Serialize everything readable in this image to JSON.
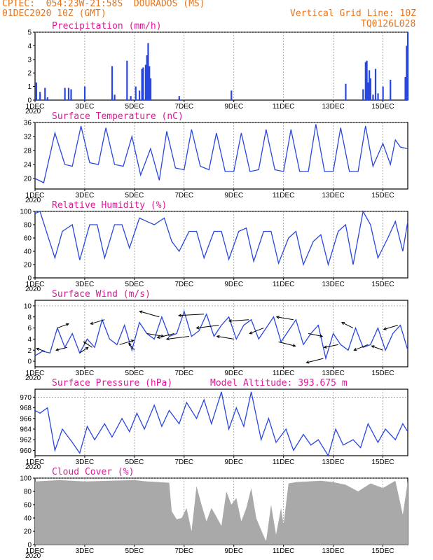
{
  "header": {
    "line1": "CPTEC:  054:23W-21:58S  DOURADOS (MS)",
    "line2": "01DEC2020 10Z (GMT)",
    "grid_note": "Vertical Grid Line: 10Z",
    "code": "TQ0126L028"
  },
  "colors": {
    "header": "#e8731c",
    "title": "#e0189a",
    "line": "#2846e0",
    "bar": "#2846e0",
    "cloud": "#a9a9a9"
  },
  "x_ticks": [
    "1DEC",
    "3DEC",
    "5DEC",
    "7DEC",
    "9DEC",
    "11DEC",
    "13DEC",
    "15DEC"
  ],
  "x_label_fragment": "2020",
  "model_altitude": "Model Altitude: 393.675 m",
  "chart_data": [
    {
      "id": "precip",
      "type": "bar",
      "title": "Precipitation (mm/h)",
      "x_range_days": [
        1,
        16
      ],
      "ylim": [
        0,
        5
      ],
      "yticks": [
        0,
        1,
        2,
        3,
        4,
        5
      ],
      "x": [
        1.05,
        1.2,
        1.4,
        1.5,
        2.2,
        2.35,
        2.45,
        3.0,
        4.1,
        4.2,
        4.7,
        4.85,
        5.05,
        5.2,
        5.3,
        5.35,
        5.45,
        5.5,
        5.55,
        5.6,
        5.65,
        6.8,
        8.9,
        13.5,
        14.2,
        14.3,
        14.35,
        14.4,
        14.45,
        14.5,
        14.6,
        14.7,
        14.8,
        15.0,
        15.3,
        15.9,
        15.95,
        16.0
      ],
      "values": [
        1.3,
        0.6,
        0.9,
        0.2,
        0.9,
        0.9,
        0.8,
        1.0,
        2.5,
        0.4,
        2.9,
        0.3,
        1.0,
        0.7,
        2.3,
        2.4,
        2.6,
        3.3,
        4.2,
        2.5,
        1.6,
        0.3,
        0.7,
        1.2,
        0.8,
        2.8,
        2.9,
        1.3,
        2.2,
        1.6,
        0.4,
        2.3,
        0.5,
        1.0,
        1.5,
        1.7,
        4.0,
        5.0
      ]
    },
    {
      "id": "temp",
      "type": "line",
      "title": "Surface Temperature (nC)",
      "ylim": [
        17,
        36
      ],
      "yticks": [
        20,
        24,
        28,
        32,
        36
      ],
      "x": [
        1.0,
        1.35,
        1.8,
        2.2,
        2.5,
        2.85,
        3.2,
        3.55,
        3.85,
        4.2,
        4.55,
        4.9,
        5.25,
        5.65,
        6.0,
        6.3,
        6.65,
        7.0,
        7.3,
        7.65,
        8.0,
        8.3,
        8.65,
        9.0,
        9.3,
        9.65,
        10.0,
        10.3,
        10.65,
        11.0,
        11.3,
        11.65,
        12.0,
        12.3,
        12.65,
        13.0,
        13.3,
        13.65,
        14.0,
        14.3,
        14.6,
        15.0,
        15.3,
        15.5,
        15.7,
        16.0
      ],
      "values": [
        20,
        18.8,
        33,
        24,
        23.5,
        35,
        24.5,
        24,
        34.5,
        24,
        23.5,
        32,
        21,
        28.5,
        19.5,
        33.5,
        23,
        22.5,
        34,
        23.5,
        22.5,
        33,
        22,
        22,
        33,
        22,
        22.5,
        34,
        22.5,
        22,
        34,
        22,
        22,
        35.5,
        22,
        22,
        34.5,
        22,
        22,
        35,
        23.5,
        30,
        24,
        31,
        29,
        28.5
      ]
    },
    {
      "id": "rh",
      "type": "line",
      "title": "Relative Humidity (%)",
      "ylim": [
        0,
        100
      ],
      "yticks": [
        0,
        20,
        40,
        60,
        80,
        100
      ],
      "x": [
        1.0,
        1.2,
        1.5,
        1.8,
        2.1,
        2.5,
        2.8,
        3.2,
        3.5,
        3.8,
        4.2,
        4.5,
        4.8,
        5.2,
        5.5,
        5.8,
        6.2,
        6.5,
        6.8,
        7.2,
        7.5,
        7.8,
        8.2,
        8.5,
        8.8,
        9.2,
        9.5,
        9.8,
        10.2,
        10.5,
        10.8,
        11.2,
        11.5,
        11.8,
        12.2,
        12.5,
        12.8,
        13.2,
        13.5,
        13.8,
        14.2,
        14.5,
        14.8,
        15.2,
        15.5,
        15.8,
        16.0
      ],
      "values": [
        97,
        100,
        65,
        30,
        70,
        80,
        27,
        80,
        80,
        30,
        80,
        80,
        45,
        90,
        85,
        80,
        90,
        55,
        40,
        70,
        70,
        30,
        70,
        70,
        28,
        70,
        75,
        25,
        70,
        70,
        22,
        60,
        70,
        20,
        55,
        65,
        20,
        70,
        80,
        20,
        100,
        80,
        30,
        60,
        85,
        40,
        85
      ]
    },
    {
      "id": "wind",
      "type": "line",
      "title": "Surface Wind (m/s)",
      "ylim": [
        -1,
        11
      ],
      "yticks": [
        0,
        2,
        4,
        6,
        8,
        10
      ],
      "x": [
        1.0,
        1.3,
        1.6,
        1.9,
        2.2,
        2.5,
        2.8,
        3.1,
        3.4,
        3.7,
        4.0,
        4.3,
        4.6,
        4.9,
        5.2,
        5.5,
        5.8,
        6.1,
        6.4,
        6.7,
        7.0,
        7.3,
        7.6,
        7.9,
        8.2,
        8.5,
        8.8,
        9.1,
        9.4,
        9.7,
        10.0,
        10.3,
        10.6,
        10.9,
        11.2,
        11.5,
        11.8,
        12.1,
        12.4,
        12.7,
        13.0,
        13.3,
        13.6,
        13.9,
        14.2,
        14.5,
        14.8,
        15.1,
        15.4,
        15.7,
        16.0
      ],
      "values": [
        1.0,
        1.8,
        1.5,
        6.0,
        2.5,
        5.0,
        1.5,
        4.0,
        2.5,
        7.5,
        4.0,
        3.0,
        6.5,
        2.0,
        7.0,
        5.0,
        4.0,
        8.0,
        4.5,
        5.0,
        9.0,
        4.5,
        5.5,
        8.5,
        4.5,
        6.5,
        8.0,
        4.0,
        6.5,
        7.5,
        4.0,
        6.0,
        8.0,
        3.5,
        5.5,
        7.5,
        3.0,
        5.0,
        6.5,
        0.5,
        5.0,
        3.0,
        2.0,
        6.0,
        2.5,
        3.0,
        6.0,
        2.0,
        5.0,
        6.5,
        2.0
      ],
      "vectors": {
        "x": [
          1.4,
          1.9,
          2.3,
          2.8,
          3.3,
          3.8,
          4.4,
          5.0,
          5.5,
          6.0,
          6.6,
          7.2,
          7.8,
          8.4,
          9.0,
          9.6,
          10.2,
          10.8,
          11.4,
          12.0,
          12.6,
          13.2,
          13.8,
          14.4,
          15.0,
          15.6
        ],
        "dx": [
          -3,
          4,
          -4,
          3,
          -3,
          -5,
          5,
          -2,
          6,
          -7,
          -6,
          -8,
          -9,
          -8,
          -6,
          -7,
          -5,
          6,
          -6,
          5,
          -6,
          -5,
          -4,
          -5,
          -4,
          -5
        ],
        "dy": [
          -2,
          -3,
          2,
          -4,
          -4,
          3,
          -3,
          -5,
          2,
          -4,
          3,
          2,
          1,
          2,
          -2,
          1,
          4,
          3,
          -2,
          2,
          3,
          2,
          -4,
          4,
          -3,
          3
        ]
      }
    },
    {
      "id": "pressure",
      "type": "line",
      "title": "Surface Pressure (hPa)",
      "ylim": [
        959,
        971.5
      ],
      "yticks": [
        960,
        962,
        964,
        966,
        968,
        970
      ],
      "x": [
        1.0,
        1.2,
        1.5,
        1.8,
        2.1,
        2.5,
        2.8,
        3.1,
        3.4,
        3.8,
        4.1,
        4.5,
        4.8,
        5.1,
        5.4,
        5.8,
        6.1,
        6.4,
        6.8,
        7.1,
        7.5,
        7.8,
        8.1,
        8.5,
        8.8,
        9.1,
        9.4,
        9.7,
        10.1,
        10.4,
        10.7,
        11.1,
        11.4,
        11.8,
        12.1,
        12.4,
        12.8,
        13.1,
        13.4,
        13.8,
        14.1,
        14.4,
        14.8,
        15.1,
        15.5,
        15.8,
        16.0
      ],
      "values": [
        967.5,
        967.0,
        968.0,
        960.0,
        964.0,
        961.5,
        959.5,
        964.5,
        962.0,
        965.0,
        962.5,
        966.0,
        963.5,
        967.0,
        964.0,
        968.5,
        964.5,
        967.5,
        965.0,
        969.0,
        966.0,
        969.5,
        965.0,
        971.0,
        964.0,
        968.0,
        964.5,
        971.0,
        962.0,
        966.0,
        961.5,
        964.0,
        960.0,
        963.0,
        961.0,
        962.0,
        959.0,
        964.0,
        961.0,
        962.0,
        960.5,
        965.0,
        961.5,
        964.0,
        962.0,
        965.0,
        963.5
      ]
    },
    {
      "id": "cloud",
      "type": "area",
      "title": "Cloud Cover (%)",
      "ylim": [
        0,
        100
      ],
      "yticks": [
        0,
        20,
        40,
        60,
        80,
        100
      ],
      "x": [
        1.0,
        2.0,
        3.0,
        4.0,
        5.0,
        5.5,
        6.0,
        6.4,
        6.5,
        6.7,
        6.9,
        7.1,
        7.3,
        7.5,
        7.7,
        7.9,
        8.1,
        8.3,
        8.5,
        8.7,
        8.9,
        9.1,
        9.3,
        9.5,
        9.7,
        9.9,
        10.1,
        10.3,
        10.5,
        10.7,
        10.9,
        11.0,
        11.2,
        11.5,
        12.0,
        12.5,
        13.0,
        13.5,
        14.0,
        14.5,
        15.0,
        15.5,
        15.8,
        16.0
      ],
      "values": [
        95,
        97,
        95,
        96,
        97,
        95,
        94,
        93,
        50,
        38,
        40,
        55,
        20,
        88,
        60,
        35,
        55,
        42,
        28,
        80,
        60,
        70,
        35,
        55,
        85,
        40,
        22,
        5,
        60,
        15,
        55,
        30,
        92,
        94,
        95,
        96,
        94,
        90,
        80,
        92,
        85,
        96,
        45,
        95
      ]
    }
  ]
}
